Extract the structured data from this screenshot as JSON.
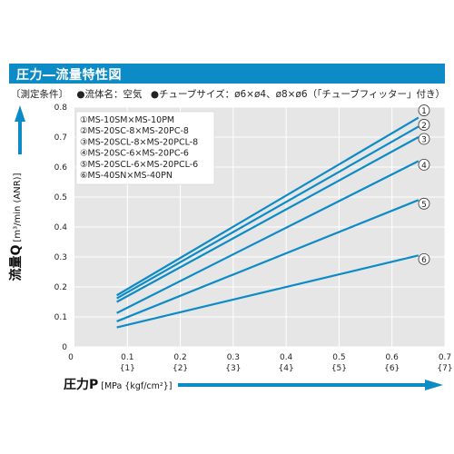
{
  "header": {
    "title": "圧力―流量特性図"
  },
  "conditions": {
    "label": "〔測定条件〕",
    "fluid": "●流体名：空気",
    "tube": "●チューブサイズ：ø6×ø4、ø8×ø6（「チューブフィッター」付き）"
  },
  "chart_data": {
    "type": "line",
    "xlabel": "圧力P",
    "xlabel_unit": "[MPa {kgf/cm²}]",
    "ylabel": "流量Q",
    "ylabel_unit": "[m³/min (ANR)]",
    "xlim": [
      0,
      0.7
    ],
    "ylim": [
      0,
      0.8
    ],
    "grid": true,
    "legend_position": "top-left",
    "x_ticks": [
      "0",
      "0.1",
      "0.2",
      "0.3",
      "0.4",
      "0.5",
      "0.6",
      "0.7"
    ],
    "x_ticks_kgf": [
      "{1}",
      "{2}",
      "{3}",
      "{4}",
      "{5}",
      "{6}",
      "{7}"
    ],
    "y_ticks": [
      "0",
      "0.1",
      "0.2",
      "0.3",
      "0.4",
      "0.5",
      "0.6",
      "0.7",
      "0.8"
    ],
    "line_color": "#0d8bc6",
    "series": [
      {
        "name": "①MS-10SM×MS-10PM",
        "marker": "①",
        "x": [
          0.08,
          0.65
        ],
        "y": [
          0.172,
          0.765
        ]
      },
      {
        "name": "②MS-20SC-8×MS-20PC-8",
        "marker": "②",
        "x": [
          0.08,
          0.65
        ],
        "y": [
          0.162,
          0.735
        ]
      },
      {
        "name": "③MS-20SCL-8×MS-20PCL-8",
        "marker": "③",
        "x": [
          0.08,
          0.65
        ],
        "y": [
          0.15,
          0.7
        ]
      },
      {
        "name": "④MS-20SC-6×MS-20PC-6",
        "marker": "④",
        "x": [
          0.08,
          0.65
        ],
        "y": [
          0.113,
          0.62
        ]
      },
      {
        "name": "⑤MS-20SCL-6×MS-20PCL-6",
        "marker": "⑤",
        "x": [
          0.08,
          0.65
        ],
        "y": [
          0.085,
          0.49
        ]
      },
      {
        "name": "⑥MS-40SN×MS-40PN",
        "marker": "⑥",
        "x": [
          0.08,
          0.65
        ],
        "y": [
          0.065,
          0.305
        ]
      }
    ]
  }
}
